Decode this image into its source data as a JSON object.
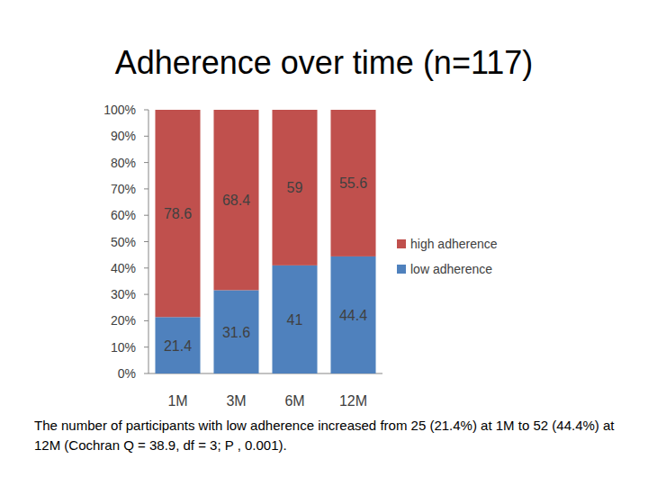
{
  "chart_data": {
    "type": "bar",
    "title": "Adherence over time (n=117)",
    "categories": [
      "1M",
      "3M",
      "6M",
      "12M"
    ],
    "series": [
      {
        "name": "low adherence",
        "color": "#4f81bd",
        "values": [
          21.4,
          31.6,
          41,
          44.4
        ]
      },
      {
        "name": "high adherence",
        "color": "#c0504d",
        "values": [
          78.6,
          68.4,
          59,
          55.6
        ]
      }
    ],
    "stacked": true,
    "data_labels": true,
    "legend": "right",
    "grid": false,
    "ylim": [
      0,
      100
    ],
    "yticks": [
      {
        "value": 0,
        "label": "0%"
      },
      {
        "value": 10,
        "label": "10%"
      },
      {
        "value": 20,
        "label": "20%"
      },
      {
        "value": 30,
        "label": "30%"
      },
      {
        "value": 40,
        "label": "40%"
      },
      {
        "value": 50,
        "label": "50%"
      },
      {
        "value": 60,
        "label": "60%"
      },
      {
        "value": 70,
        "label": "70%"
      },
      {
        "value": 80,
        "label": "80%"
      },
      {
        "value": 90,
        "label": "90%"
      },
      {
        "value": 100,
        "label": "100%"
      }
    ],
    "annotations": [
      "The number of participants with low adherence increased from 25 (21.4%) at 1M to 52 (44.4%) at 12M (Cochran Q = 38.9, df = 3; P , 0.001)."
    ]
  }
}
